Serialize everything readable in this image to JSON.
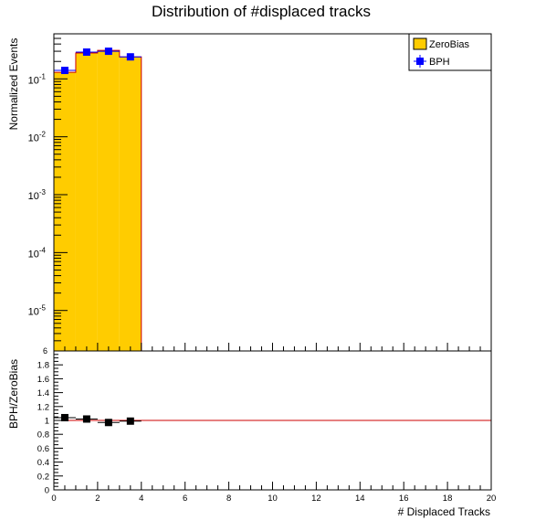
{
  "chart_data": [
    {
      "type": "bar",
      "title": "Distribution of #displaced tracks",
      "ylabel": "Normalized Events",
      "xlabel": "",
      "yscale": "log",
      "xlim": [
        0,
        20
      ],
      "ylim": [
        2e-06,
        0.6
      ],
      "y_tick_labels": [
        {
          "value": 1e-05,
          "base": "10",
          "exp": "-5"
        },
        {
          "value": 0.0001,
          "base": "10",
          "exp": "-4"
        },
        {
          "value": 0.001,
          "base": "10",
          "exp": "-3"
        },
        {
          "value": 0.01,
          "base": "10",
          "exp": "-2"
        },
        {
          "value": 0.1,
          "base": "10",
          "exp": "-1"
        }
      ],
      "y_edge_label": "6",
      "bin_edges": [
        0,
        1,
        2,
        3,
        4
      ],
      "legend_position": "top-right",
      "series": [
        {
          "name": "ZeroBias",
          "kind": "histogram",
          "fill": "#ffcc00",
          "line": "#cc0000",
          "x": [
            0.5,
            1.5,
            2.5,
            3.5
          ],
          "values": [
            0.13,
            0.28,
            0.31,
            0.24
          ]
        },
        {
          "name": "BPH",
          "kind": "points",
          "color": "#0000ff",
          "x": [
            0.5,
            1.5,
            2.5,
            3.5
          ],
          "values": [
            0.14,
            0.29,
            0.3,
            0.24
          ]
        }
      ]
    },
    {
      "type": "scatter",
      "xlabel": "# Displaced Tracks",
      "ylabel": "BPH/ZeroBias",
      "xlim": [
        0,
        20
      ],
      "ylim": [
        0,
        2
      ],
      "x_tick_labels": [
        "0",
        "2",
        "4",
        "6",
        "8",
        "10",
        "12",
        "14",
        "16",
        "18",
        "20"
      ],
      "y_tick_labels": [
        "0",
        "0.2",
        "0.4",
        "0.6",
        "0.8",
        "1",
        "1.2",
        "1.4",
        "1.6",
        "1.8"
      ],
      "reference_line": {
        "value": 1.0,
        "color": "#cc0000"
      },
      "series": [
        {
          "kind": "points",
          "color": "#000000",
          "x": [
            0.5,
            1.5,
            2.5,
            3.5
          ],
          "values": [
            1.04,
            1.02,
            0.97,
            0.99
          ]
        }
      ]
    }
  ]
}
